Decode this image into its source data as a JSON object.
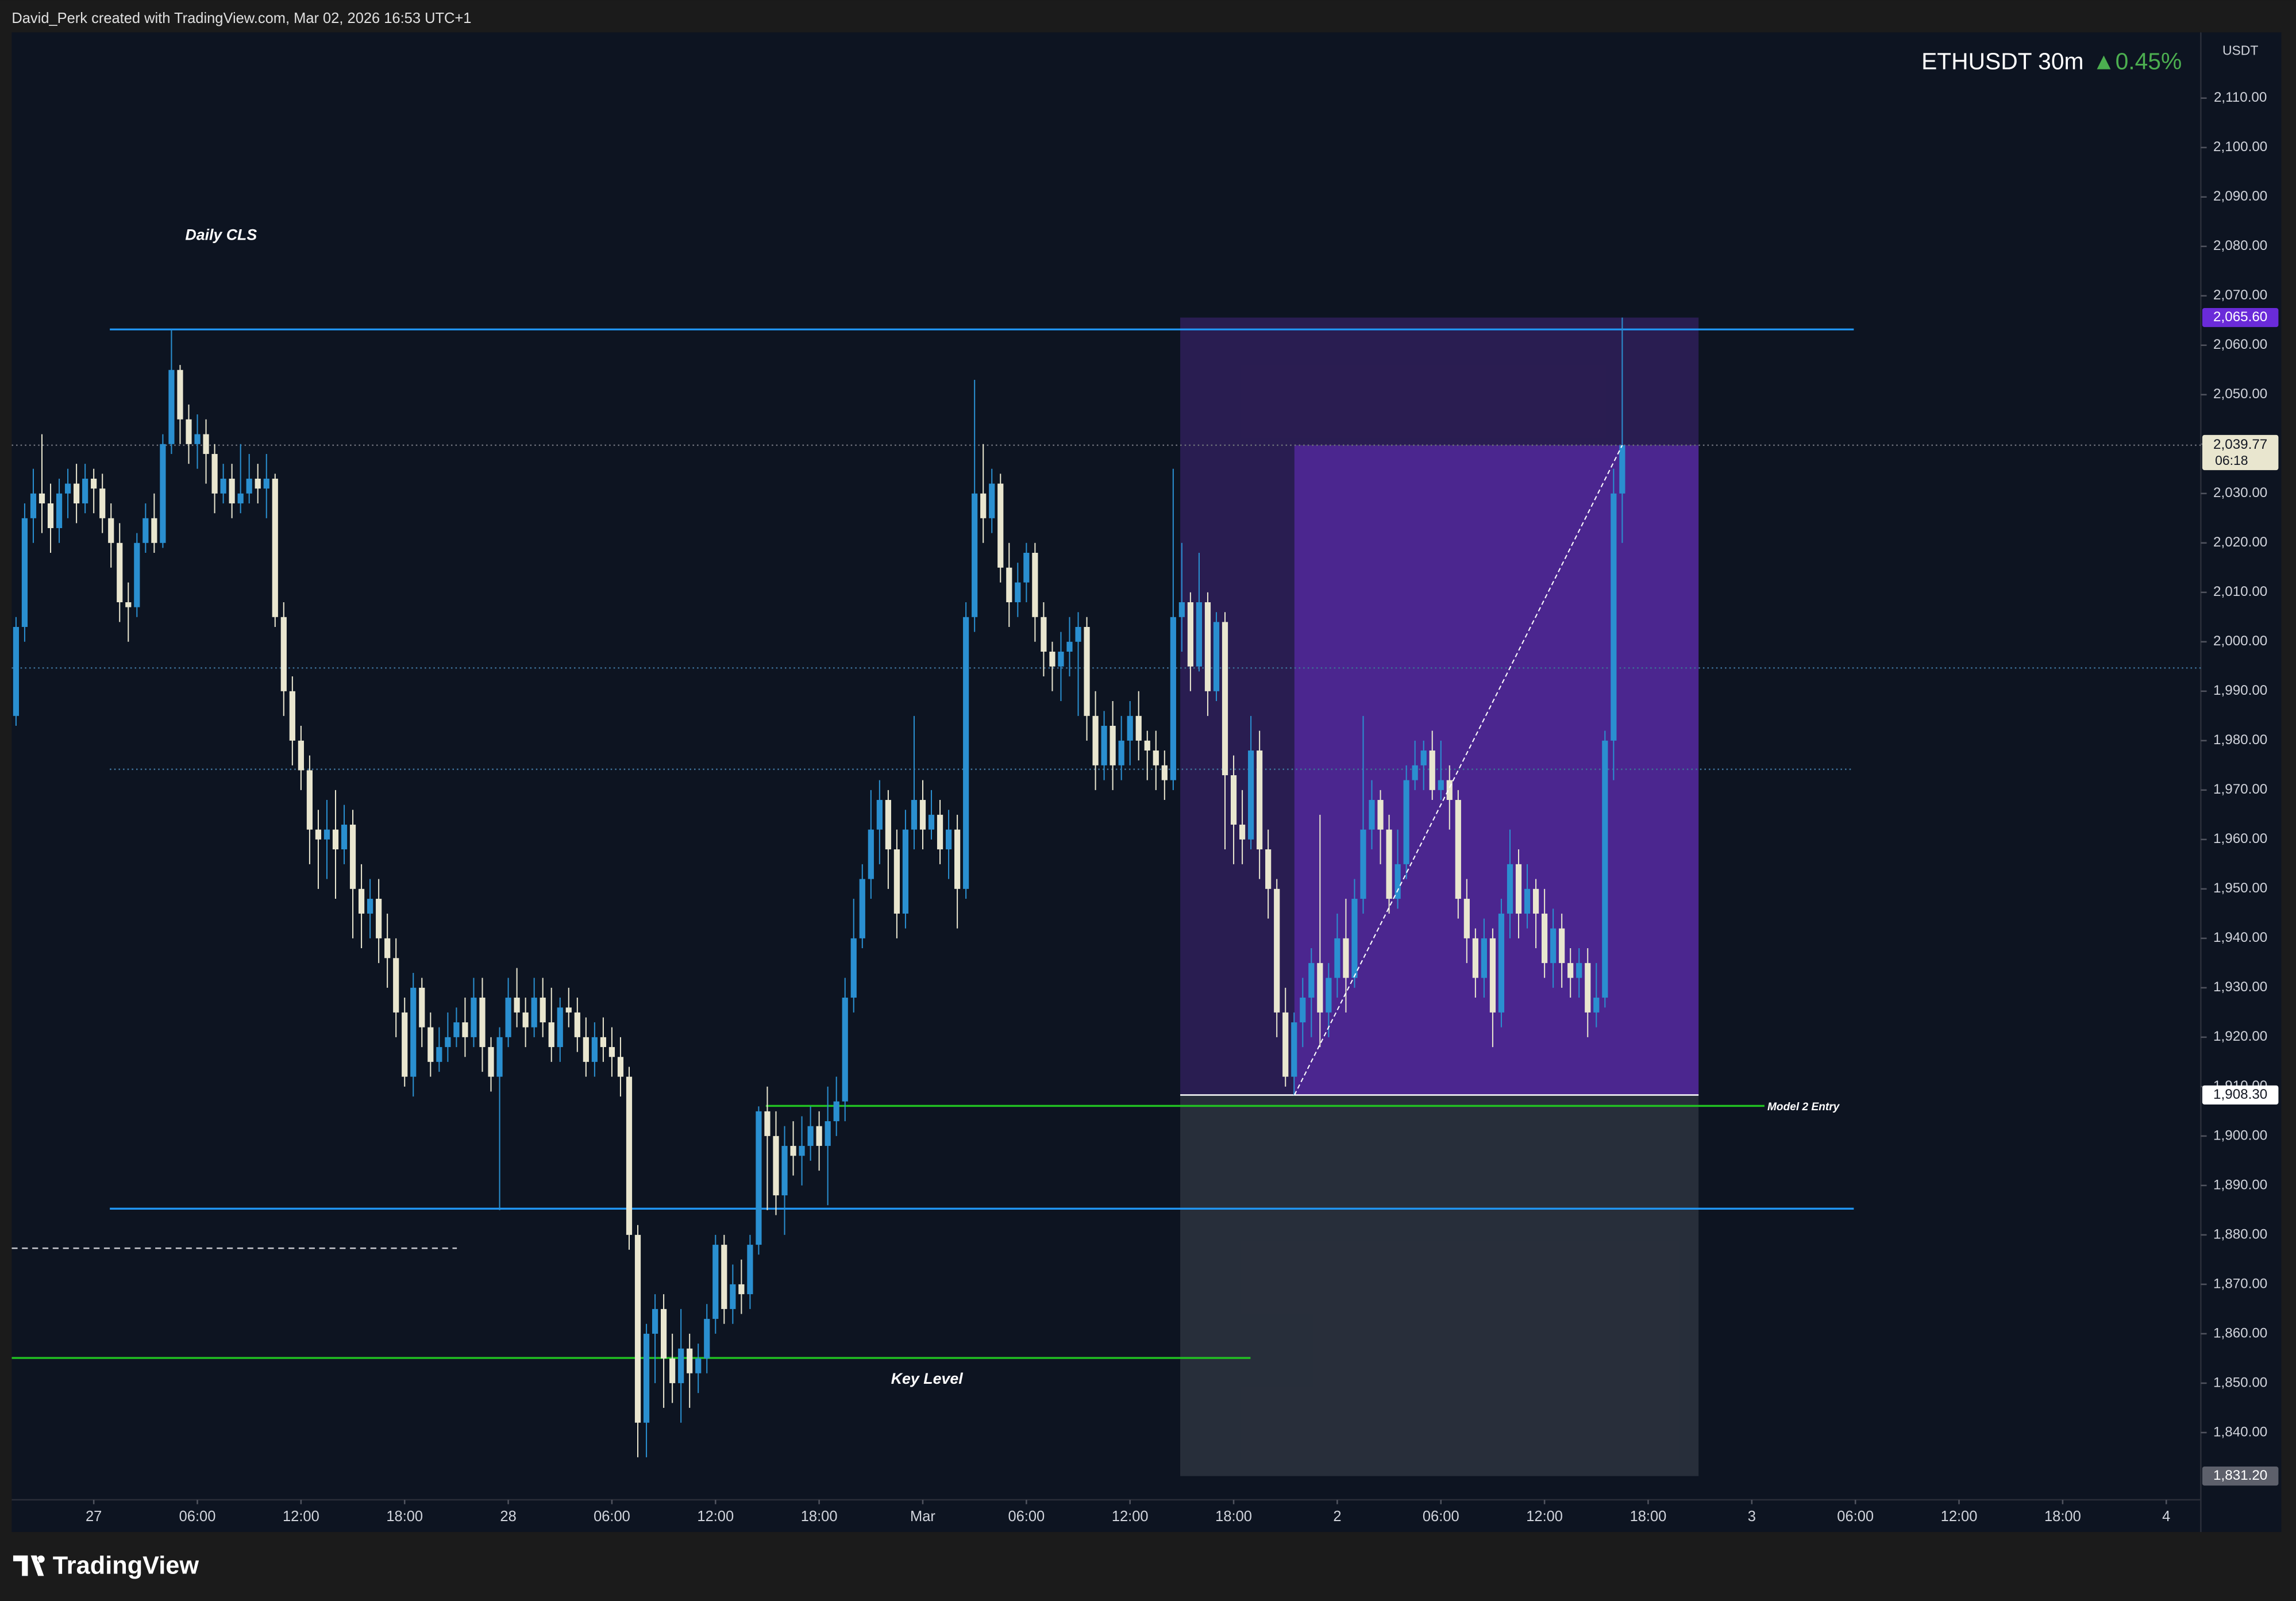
{
  "chart_data": {
    "type": "candlestick",
    "credit": "David_Perk created with TradingView.com, Mar 02, 2026 16:53 UTC+1",
    "symbol": "ETHUSDT 30m",
    "change": "▲0.45%",
    "currency": "USDT",
    "brand": "TradingView",
    "up_color": "#2a8fd0",
    "down_color": "#e9e6cf",
    "open": [
      1985,
      2003,
      2025,
      2030,
      2028,
      2023,
      2030,
      2032,
      2028,
      2033,
      2031,
      2025,
      2020,
      2008,
      2007,
      2020,
      2025,
      2020,
      2040,
      2055,
      2045,
      2040,
      2042,
      2038,
      2030,
      2033,
      2028,
      2030,
      2033,
      2031,
      2033,
      2005,
      1990,
      1980,
      1974,
      1962,
      1960,
      1962,
      1958,
      1963,
      1950,
      1945,
      1948,
      1940,
      1936,
      1925,
      1912,
      1930,
      1922,
      1915,
      1918,
      1920,
      1923,
      1920,
      1928,
      1918,
      1912,
      1920,
      1928,
      1925,
      1922,
      1928,
      1923,
      1918,
      1926,
      1925,
      1920,
      1915,
      1920,
      1918,
      1916,
      1912,
      1880,
      1842,
      1860,
      1865,
      1855,
      1850,
      1857,
      1852,
      1855,
      1863,
      1878,
      1865,
      1870,
      1868,
      1878,
      1905,
      1900,
      1888,
      1898,
      1896,
      1898,
      1902,
      1898,
      1903,
      1907,
      1928,
      1940,
      1952,
      1962,
      1968,
      1958,
      1945,
      1962,
      1968,
      1962,
      1965,
      1958,
      1962,
      1950,
      2005,
      2030,
      2025,
      2032,
      2015,
      2008,
      2012,
      2018,
      2005,
      1998,
      1995,
      1998,
      2000,
      2003,
      1985,
      1975,
      1983,
      1975,
      1980,
      1985,
      1980,
      1978,
      1975,
      1972,
      2005,
      2008,
      1995,
      2008,
      1990,
      2004,
      1973,
      1963,
      1960,
      1978,
      1958,
      1950,
      1925,
      1912,
      1923,
      1928,
      1935,
      1925,
      1932,
      1940,
      1932,
      1948,
      1962,
      1968,
      1962,
      1948,
      1955,
      1972,
      1975,
      1978,
      1970,
      1972,
      1968,
      1948,
      1940,
      1932,
      1940,
      1925,
      1945,
      1955,
      1945,
      1950,
      1945,
      1935,
      1942,
      1935,
      1932,
      1935,
      1925,
      1928,
      1980,
      2030
    ],
    "high": [
      2005,
      2028,
      2035,
      2042,
      2032,
      2033,
      2035,
      2036,
      2036,
      2035,
      2034,
      2028,
      2024,
      2012,
      2022,
      2028,
      2030,
      2042,
      2063,
      2056,
      2048,
      2046,
      2045,
      2040,
      2036,
      2036,
      2040,
      2038,
      2036,
      2038,
      2034,
      2008,
      1993,
      1983,
      1977,
      1966,
      1968,
      1970,
      1967,
      1966,
      1955,
      1952,
      1952,
      1945,
      1940,
      1928,
      1933,
      1932,
      1925,
      1922,
      1925,
      1926,
      1928,
      1932,
      1932,
      1920,
      1922,
      1932,
      1934,
      1928,
      1932,
      1932,
      1930,
      1928,
      1930,
      1928,
      1924,
      1923,
      1924,
      1922,
      1920,
      1914,
      1882,
      1862,
      1868,
      1868,
      1860,
      1865,
      1860,
      1858,
      1866,
      1880,
      1880,
      1874,
      1875,
      1880,
      1906,
      1910,
      1905,
      1902,
      1903,
      1904,
      1906,
      1905,
      1910,
      1912,
      1932,
      1948,
      1955,
      1970,
      1972,
      1970,
      1962,
      1966,
      1985,
      1972,
      1970,
      1968,
      1966,
      1965,
      2008,
      2053,
      2040,
      2035,
      2034,
      2020,
      2016,
      2020,
      2020,
      2008,
      2000,
      2002,
      2005,
      2006,
      2005,
      1990,
      1986,
      1988,
      1985,
      1988,
      1990,
      1982,
      1982,
      1978,
      2035,
      2020,
      2010,
      2018,
      2010,
      2006,
      2006,
      1977,
      1970,
      1985,
      1982,
      1962,
      1952,
      1930,
      1925,
      1932,
      1938,
      1965,
      1935,
      1945,
      1948,
      1952,
      1985,
      1972,
      1970,
      1965,
      1962,
      1975,
      1980,
      1980,
      1982,
      1980,
      1975,
      1970,
      1952,
      1942,
      1944,
      1942,
      1948,
      1962,
      1958,
      1955,
      1952,
      1950,
      1946,
      1945,
      1938,
      1938,
      1938,
      1935,
      1982,
      2035,
      2065.6
    ],
    "low": [
      1983,
      2000,
      2020,
      2022,
      2018,
      2020,
      2025,
      2024,
      2026,
      2026,
      2022,
      2015,
      2004,
      2000,
      2005,
      2018,
      2018,
      2019,
      2038,
      2040,
      2036,
      2035,
      2032,
      2026,
      2028,
      2025,
      2026,
      2028,
      2028,
      2025,
      2003,
      1985,
      1975,
      1970,
      1955,
      1950,
      1952,
      1948,
      1955,
      1940,
      1938,
      1940,
      1935,
      1930,
      1920,
      1910,
      1908,
      1918,
      1912,
      1913,
      1915,
      1918,
      1916,
      1918,
      1913,
      1909,
      1885,
      1918,
      1922,
      1918,
      1920,
      1920,
      1915,
      1915,
      1922,
      1917,
      1912,
      1912,
      1915,
      1912,
      1908,
      1877,
      1835,
      1835,
      1850,
      1845,
      1846,
      1842,
      1845,
      1848,
      1852,
      1860,
      1862,
      1862,
      1864,
      1865,
      1876,
      1885,
      1884,
      1880,
      1892,
      1890,
      1895,
      1893,
      1886,
      1900,
      1903,
      1925,
      1938,
      1948,
      1955,
      1950,
      1940,
      1942,
      1958,
      1958,
      1960,
      1955,
      1952,
      1942,
      1948,
      2002,
      2020,
      2022,
      2012,
      2003,
      2005,
      2008,
      2000,
      1993,
      1990,
      1988,
      1993,
      1985,
      1980,
      1970,
      1972,
      1970,
      1972,
      1975,
      1976,
      1972,
      1970,
      1968,
      1970,
      1998,
      1990,
      1994,
      1985,
      1988,
      1958,
      1955,
      1955,
      1958,
      1952,
      1944,
      1920,
      1910,
      1908.3,
      1918,
      1920,
      1918,
      1920,
      1928,
      1925,
      1930,
      1945,
      1958,
      1955,
      1945,
      1946,
      1952,
      1970,
      1970,
      1968,
      1968,
      1962,
      1944,
      1935,
      1928,
      1928,
      1918,
      1922,
      1940,
      1940,
      1942,
      1938,
      1932,
      1930,
      1930,
      1928,
      1928,
      1920,
      1922,
      1926,
      1972,
      2020
    ],
    "close": [
      2003,
      2025,
      2030,
      2028,
      2023,
      2030,
      2032,
      2028,
      2033,
      2031,
      2025,
      2020,
      2008,
      2007,
      2020,
      2025,
      2020,
      2040,
      2055,
      2045,
      2040,
      2042,
      2038,
      2030,
      2033,
      2028,
      2030,
      2033,
      2031,
      2033,
      2005,
      1990,
      1980,
      1974,
      1962,
      1960,
      1962,
      1958,
      1963,
      1950,
      1945,
      1948,
      1940,
      1936,
      1925,
      1912,
      1930,
      1922,
      1915,
      1918,
      1920,
      1923,
      1920,
      1928,
      1918,
      1912,
      1920,
      1928,
      1925,
      1922,
      1928,
      1923,
      1918,
      1926,
      1925,
      1920,
      1915,
      1920,
      1918,
      1916,
      1912,
      1880,
      1842,
      1860,
      1865,
      1855,
      1850,
      1857,
      1852,
      1855,
      1863,
      1878,
      1865,
      1870,
      1868,
      1878,
      1905,
      1900,
      1888,
      1898,
      1896,
      1898,
      1902,
      1898,
      1903,
      1907,
      1928,
      1940,
      1952,
      1962,
      1968,
      1958,
      1945,
      1962,
      1968,
      1962,
      1965,
      1958,
      1962,
      1950,
      2005,
      2030,
      2025,
      2032,
      2015,
      2008,
      2012,
      2018,
      2005,
      1998,
      1995,
      1998,
      2000,
      2003,
      1985,
      1975,
      1983,
      1975,
      1980,
      1985,
      1980,
      1978,
      1975,
      1972,
      2005,
      2008,
      1995,
      2008,
      1990,
      2004,
      1973,
      1963,
      1960,
      1978,
      1958,
      1950,
      1925,
      1912,
      1923,
      1928,
      1935,
      1925,
      1932,
      1940,
      1932,
      1948,
      1962,
      1968,
      1962,
      1948,
      1955,
      1972,
      1975,
      1978,
      1970,
      1972,
      1968,
      1948,
      1940,
      1932,
      1940,
      1925,
      1945,
      1955,
      1945,
      1950,
      1945,
      1935,
      1942,
      1935,
      1932,
      1935,
      1925,
      1928,
      1980,
      2030,
      2039.77
    ],
    "xlim": [
      -0.5,
      253
    ],
    "xticks": [
      {
        "value": 9,
        "label": "27"
      },
      {
        "value": 21,
        "label": "06:00"
      },
      {
        "value": 33,
        "label": "12:00"
      },
      {
        "value": 45,
        "label": "18:00"
      },
      {
        "value": 57,
        "label": "28"
      },
      {
        "value": 69,
        "label": "06:00"
      },
      {
        "value": 81,
        "label": "12:00"
      },
      {
        "value": 93,
        "label": "18:00"
      },
      {
        "value": 105,
        "label": "Mar"
      },
      {
        "value": 117,
        "label": "06:00"
      },
      {
        "value": 129,
        "label": "12:00"
      },
      {
        "value": 141,
        "label": "18:00"
      },
      {
        "value": 153,
        "label": "2"
      },
      {
        "value": 165,
        "label": "06:00"
      },
      {
        "value": 177,
        "label": "12:00"
      },
      {
        "value": 189,
        "label": "18:00"
      },
      {
        "value": 201,
        "label": "3"
      },
      {
        "value": 213,
        "label": "06:00"
      },
      {
        "value": 225,
        "label": "12:00"
      },
      {
        "value": 237,
        "label": "18:00"
      },
      {
        "value": 249,
        "label": "4"
      }
    ],
    "ylim": [
      1826.4,
      2123.3
    ],
    "yticks": [
      {
        "value": 1840,
        "label": "1,840.00"
      },
      {
        "value": 1850,
        "label": "1,850.00"
      },
      {
        "value": 1860,
        "label": "1,860.00"
      },
      {
        "value": 1870,
        "label": "1,870.00"
      },
      {
        "value": 1880,
        "label": "1,880.00"
      },
      {
        "value": 1890,
        "label": "1,890.00"
      },
      {
        "value": 1900,
        "label": "1,900.00"
      },
      {
        "value": 1910,
        "label": "1,910.00"
      },
      {
        "value": 1920,
        "label": "1,920.00"
      },
      {
        "value": 1930,
        "label": "1,930.00"
      },
      {
        "value": 1940,
        "label": "1,940.00"
      },
      {
        "value": 1950,
        "label": "1,950.00"
      },
      {
        "value": 1960,
        "label": "1,960.00"
      },
      {
        "value": 1970,
        "label": "1,970.00"
      },
      {
        "value": 1980,
        "label": "1,980.00"
      },
      {
        "value": 1990,
        "label": "1,990.00"
      },
      {
        "value": 2000,
        "label": "2,000.00"
      },
      {
        "value": 2010,
        "label": "2,010.00"
      },
      {
        "value": 2020,
        "label": "2,020.00"
      },
      {
        "value": 2030,
        "label": "2,030.00"
      },
      {
        "value": 2040,
        "label": "2,040.00"
      },
      {
        "value": 2050,
        "label": "2,050.00"
      },
      {
        "value": 2060,
        "label": "2,060.00"
      },
      {
        "value": 2070,
        "label": "2,070.00"
      },
      {
        "value": 2080,
        "label": "2,080.00"
      },
      {
        "value": 2090,
        "label": "2,090.00"
      },
      {
        "value": 2100,
        "label": "2,100.00"
      },
      {
        "value": 2110,
        "label": "2,110.00"
      }
    ],
    "last_price": {
      "value": 2039.77,
      "label": "2,039.77",
      "countdown": "06:18",
      "color": "#e9e6cf"
    },
    "position": {
      "target": {
        "value": 2065.6,
        "label": "2,065.60",
        "color": "#6a2bd9"
      },
      "entry": {
        "value": 1908.3,
        "label": "1,908.30",
        "color": "#ffffff"
      },
      "stop": {
        "value": 1831.2,
        "label": "1,831.20",
        "color": "#5d606b"
      }
    },
    "levels": [
      {
        "value": 2063.2,
        "color": "#2196f3",
        "style": "solid"
      },
      {
        "value": 1885.3,
        "color": "#2196f3",
        "style": "solid"
      },
      {
        "value": 1906.1,
        "color": "#22c322",
        "style": "solid",
        "label": "Model 2 Entry"
      },
      {
        "value": 1855.1,
        "color": "#22c322",
        "style": "solid"
      },
      {
        "value": 1994.7,
        "color": "#3d6f96",
        "style": "dotted"
      },
      {
        "value": 1974.2,
        "color": "#3d6f96",
        "style": "dotted"
      },
      {
        "value": 1877.3,
        "color": "#c9cbd1",
        "style": "dashed"
      }
    ],
    "annotations": [
      "Daily CLS",
      "Key Level"
    ]
  }
}
